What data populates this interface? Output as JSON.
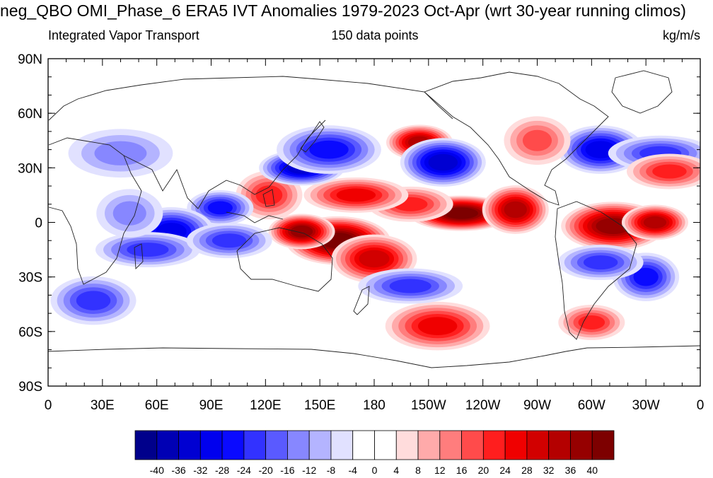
{
  "title": "neg_QBO OMI_Phase_6 ERA5 IVT Anomalies 1979-2023 Oct-Apr (wrt 30-year running climos)",
  "subtitle_left": "Integrated Vapor Transport",
  "subtitle_center": "150 data points",
  "subtitle_right": "kg/m/s",
  "lat_labels": [
    "90N",
    "60N",
    "30N",
    "0",
    "30S",
    "60S",
    "90S"
  ],
  "lon_labels": [
    "0",
    "30E",
    "60E",
    "90E",
    "120E",
    "150E",
    "180",
    "150W",
    "120W",
    "90W",
    "60W",
    "30W",
    "0"
  ],
  "colorbar": {
    "ticks": [
      "-40",
      "-36",
      "-32",
      "-28",
      "-24",
      "-20",
      "-16",
      "-12",
      "-8",
      "-4",
      "0",
      "4",
      "8",
      "12",
      "16",
      "20",
      "24",
      "28",
      "32",
      "36",
      "40"
    ],
    "colors": [
      "#00008b",
      "#0000b4",
      "#0000d2",
      "#0000ee",
      "#0a0aff",
      "#3232ff",
      "#5a5aff",
      "#8787ff",
      "#b4b4ff",
      "#e1e1ff",
      "#ffffff",
      "#ffffff",
      "#ffdcdc",
      "#ffaaaa",
      "#ff7d7d",
      "#ff4b4b",
      "#ff1e1e",
      "#f00000",
      "#d20000",
      "#b40000",
      "#960000",
      "#7d0000"
    ]
  },
  "chart_data": {
    "type": "heatmap",
    "title": "neg_QBO OMI_Phase_6 ERA5 IVT Anomalies 1979-2023 Oct-Apr (wrt 30-year running climos)",
    "variable": "Integrated Vapor Transport",
    "units": "kg/m/s",
    "n": "150 data points",
    "x_range_lon": [
      0,
      360
    ],
    "y_range_lat": [
      -90,
      90
    ],
    "contour_levels": [
      -40,
      -36,
      -32,
      -28,
      -24,
      -20,
      -16,
      -12,
      -8,
      -4,
      0,
      4,
      8,
      12,
      16,
      20,
      24,
      28,
      32,
      36,
      40
    ],
    "anomaly_blobs": [
      {
        "lon": 205,
        "lat": 44,
        "value": 34
      },
      {
        "lon": 218,
        "lat": 33,
        "value": -34
      },
      {
        "lon": 228,
        "lat": 5,
        "value": 40
      },
      {
        "lon": 258,
        "lat": 7,
        "value": 34
      },
      {
        "lon": 200,
        "lat": 10,
        "value": 22
      },
      {
        "lon": 160,
        "lat": -10,
        "value": 42
      },
      {
        "lon": 140,
        "lat": -5,
        "value": 36
      },
      {
        "lon": 180,
        "lat": -20,
        "value": 30
      },
      {
        "lon": 170,
        "lat": 15,
        "value": 26
      },
      {
        "lon": 122,
        "lat": 15,
        "value": 22
      },
      {
        "lon": 140,
        "lat": 30,
        "value": -34
      },
      {
        "lon": 155,
        "lat": 40,
        "value": -24
      },
      {
        "lon": 95,
        "lat": 8,
        "value": -24
      },
      {
        "lon": 68,
        "lat": -5,
        "value": -30
      },
      {
        "lon": 55,
        "lat": -15,
        "value": -20
      },
      {
        "lon": 45,
        "lat": 5,
        "value": -12
      },
      {
        "lon": 100,
        "lat": -10,
        "value": -22
      },
      {
        "lon": 312,
        "lat": -2,
        "value": 38
      },
      {
        "lon": 335,
        "lat": 0,
        "value": 34
      },
      {
        "lon": 305,
        "lat": 40,
        "value": -28
      },
      {
        "lon": 338,
        "lat": 38,
        "value": -22
      },
      {
        "lon": 330,
        "lat": -30,
        "value": -26
      },
      {
        "lon": 305,
        "lat": -22,
        "value": -22
      },
      {
        "lon": 215,
        "lat": -57,
        "value": 26
      },
      {
        "lon": 300,
        "lat": -55,
        "value": 22
      },
      {
        "lon": 25,
        "lat": -43,
        "value": -22
      },
      {
        "lon": 200,
        "lat": -35,
        "value": -20
      },
      {
        "lon": 270,
        "lat": 45,
        "value": 16
      },
      {
        "lon": 343,
        "lat": 28,
        "value": 22
      },
      {
        "lon": 40,
        "lat": 38,
        "value": -14
      }
    ]
  }
}
